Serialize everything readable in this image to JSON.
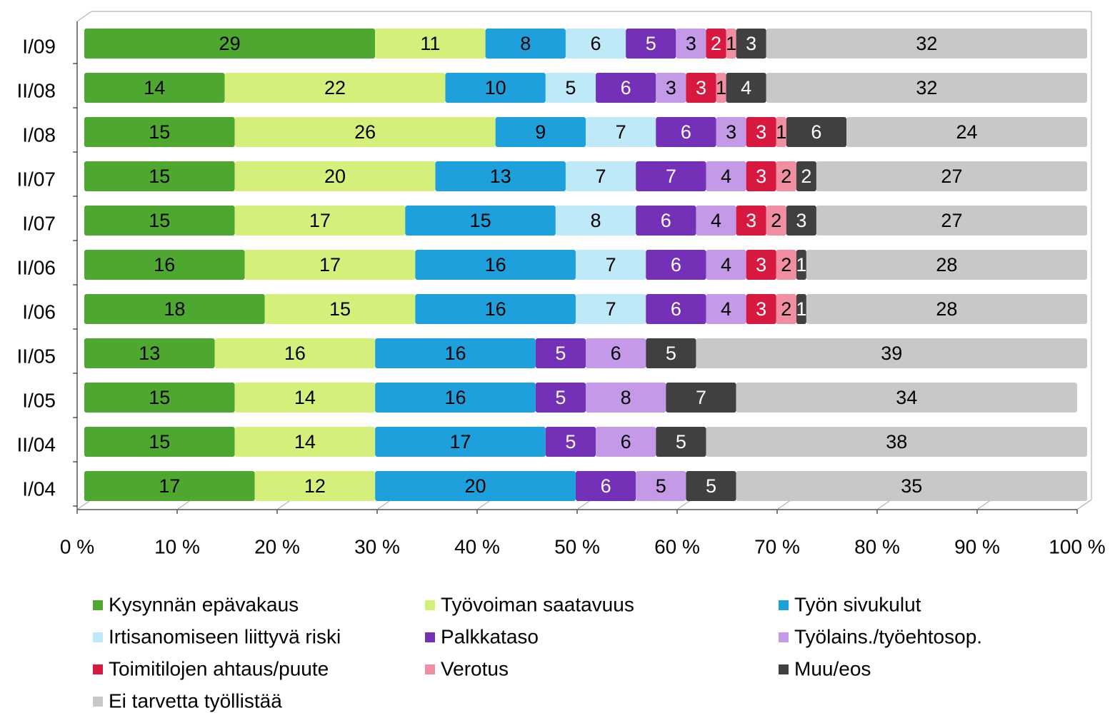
{
  "chart_data": {
    "type": "stacked_barh",
    "categories": [
      "I/09",
      "II/08",
      "I/08",
      "II/07",
      "I/07",
      "II/06",
      "I/06",
      "II/05",
      "I/05",
      "II/04",
      "I/04"
    ],
    "series": [
      {
        "name": "Kysynnän epävakaus",
        "color": "#4ea72e",
        "values": [
          29,
          14,
          15,
          15,
          15,
          16,
          18,
          13,
          15,
          15,
          17
        ]
      },
      {
        "name": "Työvoiman saatavuus",
        "color": "#d4f07a",
        "values": [
          11,
          22,
          26,
          20,
          17,
          17,
          15,
          16,
          14,
          14,
          12
        ]
      },
      {
        "name": "Työn sivukulut",
        "color": "#1ea0dc",
        "values": [
          8,
          10,
          9,
          13,
          15,
          16,
          16,
          16,
          16,
          17,
          20
        ]
      },
      {
        "name": "Irtisanomiseen liittyvä riski",
        "color": "#bde9f8",
        "values": [
          6,
          5,
          7,
          7,
          8,
          7,
          7,
          null,
          null,
          null,
          null
        ]
      },
      {
        "name": "Palkkataso",
        "color": "#7530b8",
        "values": [
          5,
          6,
          6,
          7,
          6,
          6,
          6,
          5,
          5,
          5,
          6
        ]
      },
      {
        "name": "Työlains./työehtosop.",
        "color": "#c49ae8",
        "values": [
          3,
          3,
          3,
          4,
          4,
          4,
          4,
          6,
          8,
          6,
          5
        ]
      },
      {
        "name": "Toimitilojen ahtaus/puute",
        "color": "#d8193f",
        "values": [
          2,
          3,
          3,
          3,
          3,
          3,
          3,
          null,
          null,
          null,
          null
        ]
      },
      {
        "name": "Verotus",
        "color": "#f28ea2",
        "values": [
          1,
          1,
          1,
          2,
          2,
          2,
          2,
          null,
          null,
          null,
          null
        ]
      },
      {
        "name": "Muu/eos",
        "color": "#404040",
        "values": [
          3,
          4,
          6,
          2,
          3,
          1,
          1,
          5,
          7,
          5,
          5
        ]
      },
      {
        "name": "Ei tarvetta työllistää",
        "color": "#c8c8c8",
        "values": [
          32,
          32,
          24,
          27,
          27,
          28,
          28,
          39,
          34,
          38,
          35
        ]
      }
    ],
    "xlim": [
      0,
      100
    ],
    "xticks": [
      {
        "value": 0,
        "label": "0 %"
      },
      {
        "value": 10,
        "label": "10 %"
      },
      {
        "value": 20,
        "label": "20 %"
      },
      {
        "value": 30,
        "label": "30 %"
      },
      {
        "value": 40,
        "label": "40 %"
      },
      {
        "value": 50,
        "label": "50 %"
      },
      {
        "value": 60,
        "label": "60 %"
      },
      {
        "value": 70,
        "label": "70 %"
      },
      {
        "value": 80,
        "label": "80 %"
      },
      {
        "value": 90,
        "label": "90 %"
      },
      {
        "value": 100,
        "label": "100 %"
      }
    ],
    "legend": "bottom"
  }
}
